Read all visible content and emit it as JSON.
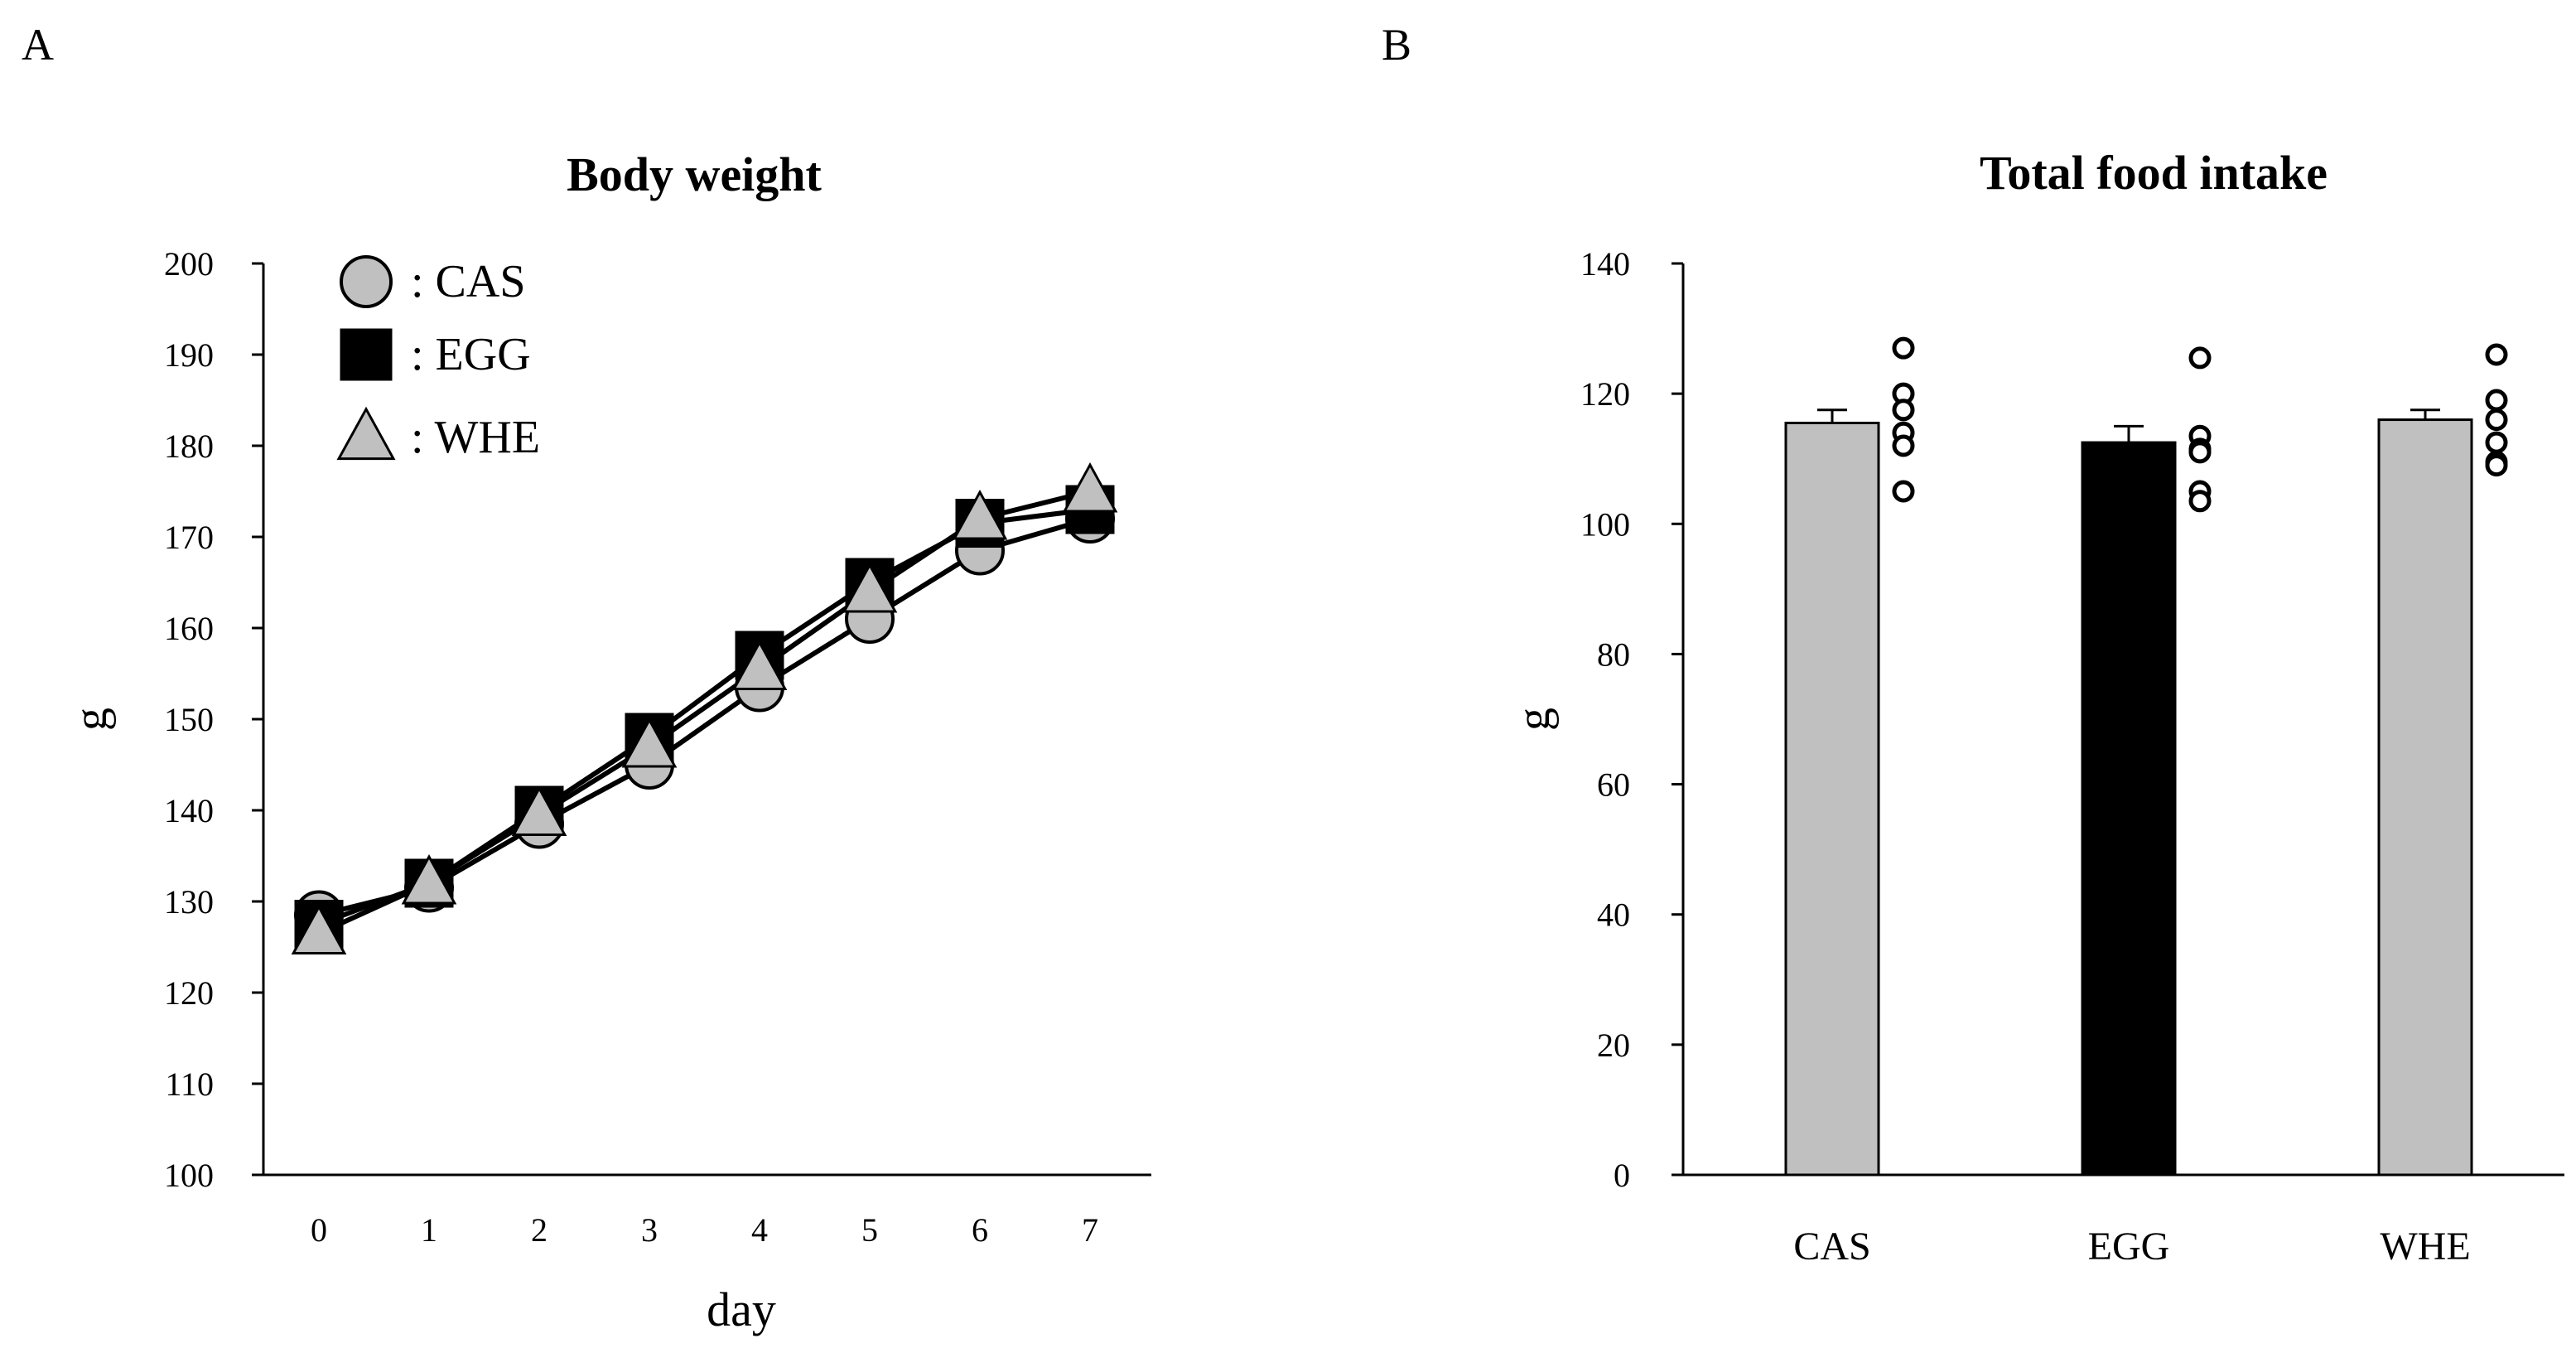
{
  "panels": {
    "A": {
      "letter": "A"
    },
    "B": {
      "letter": "B"
    }
  },
  "colors": {
    "cas": "#c0c0c0",
    "egg": "#000000",
    "whe": "#c0c0c0",
    "axis": "#000000",
    "line": "#000000"
  },
  "chart_data": [
    {
      "type": "line",
      "title": "Body weight",
      "xlabel": "day",
      "ylabel": "g",
      "x": [
        0,
        1,
        2,
        3,
        4,
        5,
        6,
        7
      ],
      "xticks": [
        "0",
        "1",
        "2",
        "3",
        "4",
        "5",
        "6",
        "7"
      ],
      "ylim": [
        100,
        200
      ],
      "yticks": [
        "100",
        "110",
        "120",
        "130",
        "140",
        "150",
        "160",
        "170",
        "180",
        "190",
        "200"
      ],
      "legend_position": "top-left",
      "series": [
        {
          "name": "CAS",
          "legend_label": ": CAS",
          "marker": "circle",
          "values": [
            128.5,
            131.5,
            138.5,
            145,
            153.5,
            161,
            168.5,
            172
          ]
        },
        {
          "name": "EGG",
          "legend_label": ": EGG",
          "marker": "square",
          "values": [
            127.5,
            132,
            140,
            148,
            157,
            165,
            171.5,
            173
          ]
        },
        {
          "name": "WHE",
          "legend_label": ": WHE",
          "marker": "triangle",
          "values": [
            126.5,
            132,
            139.5,
            147,
            155.5,
            164,
            172,
            175
          ]
        }
      ]
    },
    {
      "type": "bar",
      "title": "Total food intake",
      "xlabel": "",
      "ylabel": "g",
      "ylim": [
        0,
        140
      ],
      "yticks": [
        "0",
        "20",
        "40",
        "60",
        "80",
        "100",
        "120",
        "140"
      ],
      "categories": [
        "CAS",
        "EGG",
        "WHE"
      ],
      "values": [
        115.5,
        112.5,
        116
      ],
      "errors": [
        2,
        2.5,
        1.5
      ],
      "points": [
        [
          127,
          120,
          117.5,
          114,
          112,
          105
        ],
        [
          125.5,
          113.5,
          111.5,
          111,
          105,
          103.5
        ],
        [
          126,
          119,
          116,
          112.5,
          109.5,
          109
        ]
      ]
    }
  ]
}
